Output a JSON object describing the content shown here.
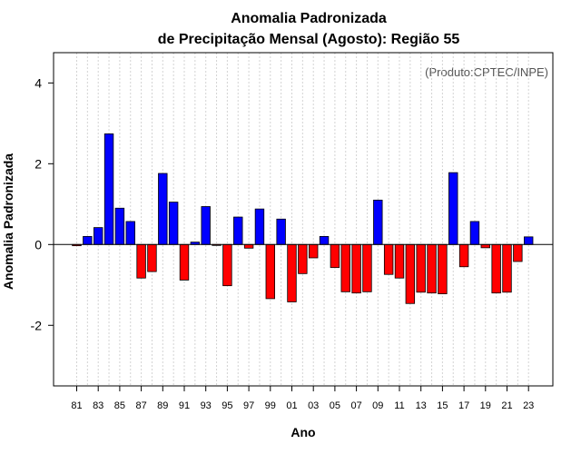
{
  "chart_data": {
    "type": "bar",
    "title_line1": "Anomalia Padronizada",
    "title_line2": "de Precipitação Mensal (Agosto): Região 55",
    "xlabel": "Ano",
    "ylabel": "Anomalia Padronizada",
    "credit": "(Produto:CPTEC/INPE)",
    "ylim": [
      -3.5,
      4.75
    ],
    "yticks": [
      -2,
      0,
      2,
      4
    ],
    "ytick_labels": [
      "-2",
      "0",
      "2",
      "4"
    ],
    "xtick_labels": [
      "81",
      "83",
      "85",
      "87",
      "89",
      "91",
      "93",
      "95",
      "97",
      "99",
      "01",
      "03",
      "05",
      "07",
      "09",
      "11",
      "13",
      "15",
      "17",
      "19",
      "21",
      "23"
    ],
    "years": [
      "1981",
      "1982",
      "1983",
      "1984",
      "1985",
      "1986",
      "1987",
      "1988",
      "1989",
      "1990",
      "1991",
      "1992",
      "1993",
      "1994",
      "1995",
      "1996",
      "1997",
      "1998",
      "1999",
      "2000",
      "2001",
      "2002",
      "2003",
      "2004",
      "2005",
      "2006",
      "2007",
      "2008",
      "2009",
      "2010",
      "2011",
      "2012",
      "2013",
      "2014",
      "2015",
      "2016",
      "2017",
      "2018",
      "2019",
      "2020",
      "2021",
      "2022",
      "2023"
    ],
    "values": [
      -0.03,
      0.2,
      0.42,
      2.74,
      0.9,
      0.57,
      -0.83,
      -0.67,
      1.76,
      1.05,
      -0.88,
      0.06,
      0.94,
      -0.02,
      -1.02,
      0.68,
      -0.09,
      0.88,
      -1.34,
      0.63,
      -1.42,
      -0.72,
      -0.33,
      0.2,
      -0.57,
      -1.17,
      -1.2,
      -1.17,
      1.1,
      -0.74,
      -0.83,
      -1.46,
      -1.18,
      -1.2,
      -1.22,
      1.78,
      -0.55,
      0.57,
      -0.08,
      -1.2,
      -1.18,
      -0.42,
      0.19
    ],
    "colors": {
      "positive": "#0000ff",
      "negative": "#ff0000",
      "grid": "#d3d3d3",
      "frame": "#000000"
    }
  }
}
